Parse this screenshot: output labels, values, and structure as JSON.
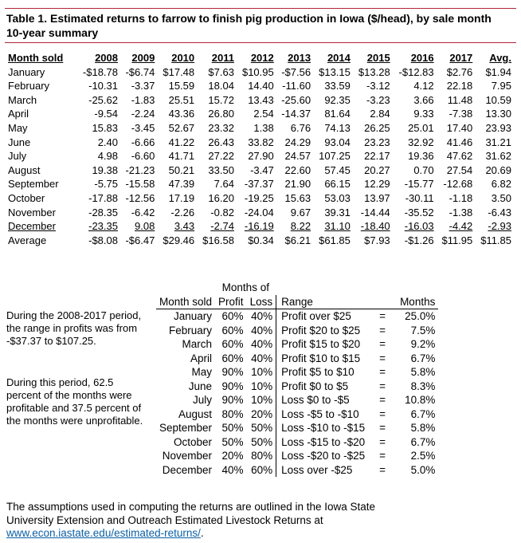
{
  "title": {
    "line1": "Table 1. Estimated returns to farrow to finish pig production in Iowa ($/head), by sale month",
    "line2": "10-year summary"
  },
  "main_table": {
    "headers": [
      "Month sold",
      "2008",
      "2009",
      "2010",
      "2011",
      "2012",
      "2013",
      "2014",
      "2015",
      "2016",
      "2017",
      "Avg."
    ],
    "rows": [
      [
        "January",
        "-$18.78",
        "-$6.74",
        "$17.48",
        "$7.63",
        "$10.95",
        "-$7.56",
        "$13.15",
        "$13.28",
        "-$12.83",
        "$2.76",
        "$1.94"
      ],
      [
        "February",
        "-10.31",
        "-3.37",
        "15.59",
        "18.04",
        "14.40",
        "-11.60",
        "33.59",
        "-3.12",
        "4.12",
        "22.18",
        "7.95"
      ],
      [
        "March",
        "-25.62",
        "-1.83",
        "25.51",
        "15.72",
        "13.43",
        "-25.60",
        "92.35",
        "-3.23",
        "3.66",
        "11.48",
        "10.59"
      ],
      [
        "April",
        "-9.54",
        "-2.24",
        "43.36",
        "26.80",
        "2.54",
        "-14.37",
        "81.64",
        "2.84",
        "9.33",
        "-7.38",
        "13.30"
      ],
      [
        "May",
        "15.83",
        "-3.45",
        "52.67",
        "23.32",
        "1.38",
        "6.76",
        "74.13",
        "26.25",
        "25.01",
        "17.40",
        "23.93"
      ],
      [
        "June",
        "2.40",
        "-6.66",
        "41.22",
        "26.43",
        "33.82",
        "24.29",
        "93.04",
        "23.23",
        "32.92",
        "41.46",
        "31.21"
      ],
      [
        "July",
        "4.98",
        "-6.60",
        "41.71",
        "27.22",
        "27.90",
        "24.57",
        "107.25",
        "22.17",
        "19.36",
        "47.62",
        "31.62"
      ],
      [
        "August",
        "19.38",
        "-21.23",
        "50.21",
        "33.50",
        "-3.47",
        "22.60",
        "57.45",
        "20.27",
        "0.70",
        "27.54",
        "20.69"
      ],
      [
        "September",
        "-5.75",
        "-15.58",
        "47.39",
        "7.64",
        "-37.37",
        "21.90",
        "66.15",
        "12.29",
        "-15.77",
        "-12.68",
        "6.82"
      ],
      [
        "October",
        "-17.88",
        "-12.56",
        "17.19",
        "16.20",
        "-19.25",
        "15.63",
        "53.03",
        "13.97",
        "-30.11",
        "-1.18",
        "3.50"
      ],
      [
        "November",
        "-28.35",
        "-6.42",
        "-2.26",
        "-0.82",
        "-24.04",
        "9.67",
        "39.31",
        "-14.44",
        "-35.52",
        "-1.38",
        "-6.43"
      ],
      [
        "December",
        "-23.35",
        "9.08",
        "3.43",
        "-2.74",
        "-16.19",
        "8.22",
        "31.10",
        "-18.40",
        "-16.03",
        "-4.42",
        "-2.93"
      ],
      [
        "Average",
        "-$8.08",
        "-$6.47",
        "$29.46",
        "$16.58",
        "$0.34",
        "$6.21",
        "$61.85",
        "$7.93",
        "-$1.26",
        "$11.95",
        "$11.85"
      ]
    ]
  },
  "summary": {
    "para1": "During the 2008-2017 period, the range in profits was from -$37.37 to $107.25.",
    "para2": "During this period, 62.5 percent of the months were profitable and 37.5 percent of the months were unprofitable."
  },
  "months_table": {
    "group_header": "Months of",
    "headers": [
      "Month sold",
      "Profit",
      "Loss",
      "Range",
      "Months"
    ],
    "rows": [
      [
        "January",
        "60%",
        "40%",
        "Profit over $25",
        "=",
        "25.0%"
      ],
      [
        "February",
        "60%",
        "40%",
        "Profit $20 to $25",
        "=",
        "7.5%"
      ],
      [
        "March",
        "60%",
        "40%",
        "Profit $15 to $20",
        "=",
        "9.2%"
      ],
      [
        "April",
        "60%",
        "40%",
        "Profit $10 to $15",
        "=",
        "6.7%"
      ],
      [
        "May",
        "90%",
        "10%",
        "Profit $5 to $10",
        "=",
        "5.8%"
      ],
      [
        "June",
        "90%",
        "10%",
        "Profit $0 to $5",
        "=",
        "8.3%"
      ],
      [
        "July",
        "90%",
        "10%",
        "Loss $0 to -$5",
        "=",
        "10.8%"
      ],
      [
        "August",
        "80%",
        "20%",
        "Loss -$5 to -$10",
        "=",
        "6.7%"
      ],
      [
        "September",
        "50%",
        "50%",
        "Loss -$10 to -$15",
        "=",
        "5.8%"
      ],
      [
        "October",
        "50%",
        "50%",
        "Loss -$15 to -$20",
        "=",
        "6.7%"
      ],
      [
        "November",
        "20%",
        "80%",
        "Loss -$20 to -$25",
        "=",
        "2.5%"
      ],
      [
        "December",
        "40%",
        "60%",
        "Loss over -$25",
        "=",
        "5.0%"
      ]
    ]
  },
  "footer": {
    "text": "The assumptions used in computing the returns are outlined in the Iowa State University Extension and Outreach Estimated Livestock Returns at",
    "link": "www.econ.iastate.edu/estimated-returns/",
    "trail": "."
  },
  "colors": {
    "title_rule": "#b0263a",
    "link": "#0b5fa5"
  }
}
